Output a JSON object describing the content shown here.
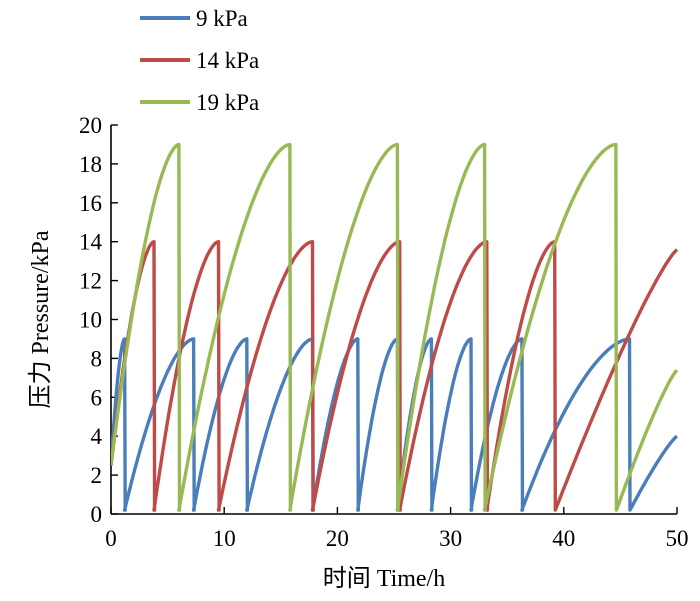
{
  "chart_data": {
    "type": "line",
    "xlabel": "时间  Time/h",
    "ylabel": "压力  Pressure/kPa",
    "xlim": [
      0,
      50
    ],
    "ylim": [
      0,
      20
    ],
    "xticks": [
      0,
      10,
      20,
      30,
      40,
      50
    ],
    "yticks": [
      0,
      2,
      4,
      6,
      8,
      10,
      12,
      14,
      16,
      18,
      20
    ],
    "grid": false,
    "legend_position": "top-left",
    "series": [
      {
        "name": "9 kPa",
        "color": "#4a7ebb",
        "cycles": [
          [
            0,
            1.2
          ],
          [
            1.2,
            7.3
          ],
          [
            7.3,
            12.0
          ],
          [
            12.0,
            17.8
          ],
          [
            17.8,
            21.8
          ],
          [
            21.8,
            25.3
          ],
          [
            25.3,
            28.3
          ],
          [
            28.3,
            31.8
          ],
          [
            31.8,
            36.3
          ],
          [
            36.3,
            45.8
          ]
        ],
        "tail_end": [
          50,
          4.0
        ]
      },
      {
        "name": "14 kPa",
        "color": "#be4b48",
        "cycles": [
          [
            0,
            3.8
          ],
          [
            3.8,
            9.5
          ],
          [
            9.5,
            17.8
          ],
          [
            17.8,
            25.5
          ],
          [
            25.5,
            33.2
          ],
          [
            33.2,
            39.2
          ]
        ],
        "tail_end": [
          50,
          13.6
        ]
      },
      {
        "name": "19 kPa",
        "color": "#98b954",
        "cycles": [
          [
            0,
            6.0
          ],
          [
            6.0,
            15.8
          ],
          [
            15.8,
            25.3
          ],
          [
            25.3,
            33.0
          ],
          [
            33.0,
            44.6
          ]
        ],
        "tail_end": [
          50,
          7.4
        ]
      }
    ]
  }
}
